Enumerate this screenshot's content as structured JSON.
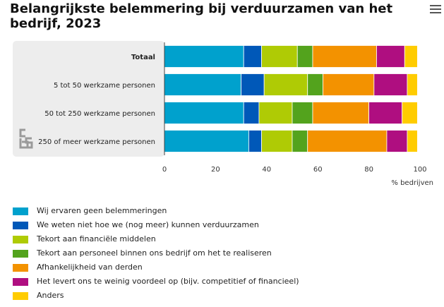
{
  "title": "Belangrijkste belemmering bij verduurzamen van het bedrijf, 2023",
  "menu_icon": "hamburger-menu-icon",
  "logo_icon": "cbs-logo-icon",
  "chart_data": {
    "type": "bar",
    "orientation": "horizontal",
    "stacked": true,
    "categories": [
      "Totaal",
      "5 tot 50 werkzame personen",
      "50 tot 250 werkzame personen",
      "250 of meer werkzame personen"
    ],
    "bold_category": "Totaal",
    "series": [
      {
        "name": "Wij ervaren geen belemmeringen",
        "color": "#00a1cd",
        "values": [
          31,
          30,
          31,
          33
        ]
      },
      {
        "name": "We weten niet hoe we (nog meer) kunnen verduurzamen",
        "color": "#0058b8",
        "values": [
          7,
          9,
          6,
          5
        ]
      },
      {
        "name": "Tekort aan financiële middelen",
        "color": "#afcb05",
        "values": [
          14,
          17,
          13,
          12
        ]
      },
      {
        "name": "Tekort aan personeel binnen ons bedrijf om het te realiseren",
        "color": "#53a31d",
        "values": [
          6,
          6,
          8,
          6
        ]
      },
      {
        "name": "Afhankelijkheid van derden",
        "color": "#f39200",
        "values": [
          25,
          20,
          22,
          31
        ]
      },
      {
        "name": "Het levert ons te weinig voordeel op (bijv. competitief of financieel)",
        "color": "#af0e80",
        "values": [
          11,
          13,
          13,
          8
        ]
      },
      {
        "name": "Anders",
        "color": "#ffcc00",
        "values": [
          5,
          4,
          6,
          4
        ]
      }
    ],
    "xlim": [
      0,
      100
    ],
    "xticks": [
      0,
      20,
      40,
      60,
      80,
      100
    ],
    "xlabel": "% bedrijven",
    "grid": false,
    "legend": "bottom"
  }
}
